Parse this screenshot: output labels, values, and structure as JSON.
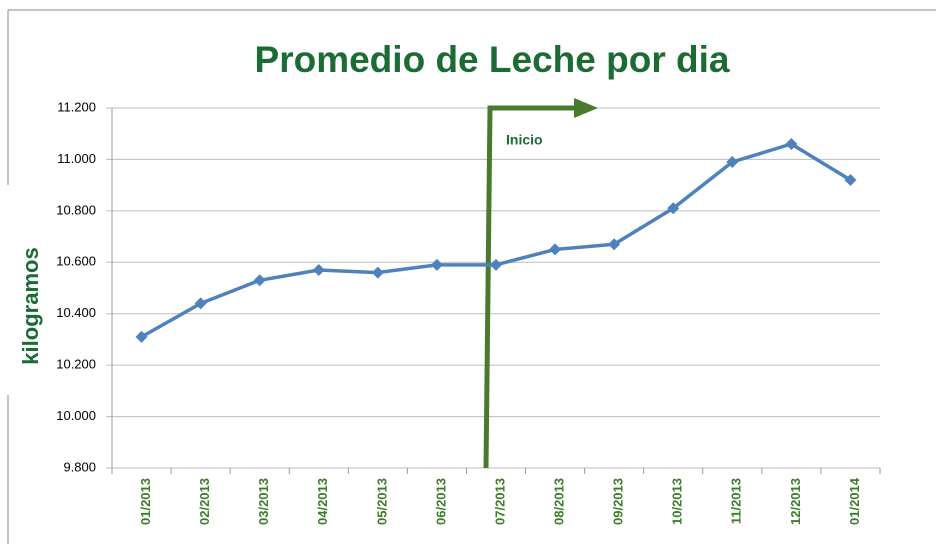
{
  "chart_data": {
    "type": "line",
    "title": "Promedio de Leche por dia",
    "y_label": "kilogramos",
    "annotation": "Inicio",
    "categories": [
      "01/2013",
      "02/2013",
      "03/2013",
      "04/2013",
      "05/2013",
      "06/2013",
      "07/2013",
      "08/2013",
      "09/2013",
      "10/2013",
      "11/2013",
      "12/2013",
      "01/2014"
    ],
    "series": [
      {
        "name": "Promedio",
        "color": "#4f81bd",
        "values": [
          10.31,
          10.44,
          10.53,
          10.57,
          10.56,
          10.59,
          10.59,
          10.65,
          10.67,
          10.81,
          10.99,
          11.06,
          10.92
        ]
      }
    ],
    "ylim": [
      9.8,
      11.2
    ],
    "yticks": [
      {
        "value": 9.8,
        "label": "9.800"
      },
      {
        "value": 10.0,
        "label": "10.000"
      },
      {
        "value": 10.2,
        "label": "10.200"
      },
      {
        "value": 10.4,
        "label": "10.400"
      },
      {
        "value": 10.6,
        "label": "10.600"
      },
      {
        "value": 10.8,
        "label": "10.800"
      },
      {
        "value": 11.0,
        "label": "11.000"
      },
      {
        "value": 11.2,
        "label": "11.200"
      }
    ],
    "grid": true
  }
}
